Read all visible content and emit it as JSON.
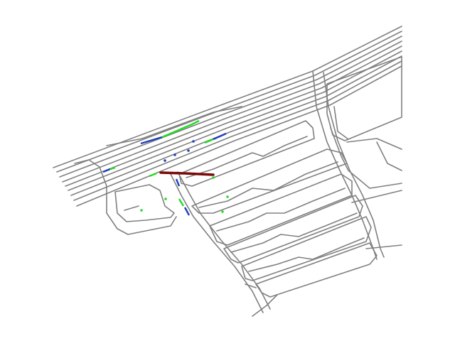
{
  "colors": {
    "background": "#ffffff",
    "road_lines": "#808080",
    "trajectory_blue": "#1f3fbf",
    "trajectory_green": "#22dd22",
    "ego_path": "#7a0a0a"
  },
  "map": {
    "kind": "road-network-lane-map",
    "legend": null,
    "text_labels": []
  }
}
